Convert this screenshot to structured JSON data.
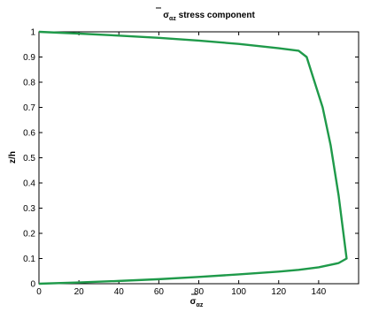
{
  "chart_data": {
    "type": "line",
    "title_symbol": "σ",
    "title_subscript": "αz",
    "title_rest": " stress component",
    "xlabel_symbol": "σ",
    "xlabel_subscript": "αz",
    "ylabel": "z/h",
    "xlim": [
      0,
      160
    ],
    "ylim": [
      0,
      1
    ],
    "xticks": [
      "0",
      "20",
      "40",
      "60",
      "80",
      "100",
      "120",
      "140"
    ],
    "yticks": [
      "0",
      "0.1",
      "0.2",
      "0.3",
      "0.4",
      "0.5",
      "0.6",
      "0.7",
      "0.8",
      "0.9",
      "1"
    ],
    "grid": false,
    "line_color": "#1f9a4a",
    "series": [
      {
        "x": [
          0,
          20,
          40,
          60,
          80,
          100,
          120,
          130,
          134,
          138,
          142,
          146,
          150,
          154,
          150,
          140,
          130,
          120,
          100,
          80,
          60,
          40,
          20,
          0
        ],
        "y": [
          1.0,
          0.993,
          0.985,
          0.976,
          0.965,
          0.952,
          0.935,
          0.925,
          0.9,
          0.8,
          0.7,
          0.55,
          0.35,
          0.1,
          0.082,
          0.065,
          0.055,
          0.048,
          0.037,
          0.027,
          0.018,
          0.011,
          0.005,
          0.0
        ]
      }
    ]
  }
}
